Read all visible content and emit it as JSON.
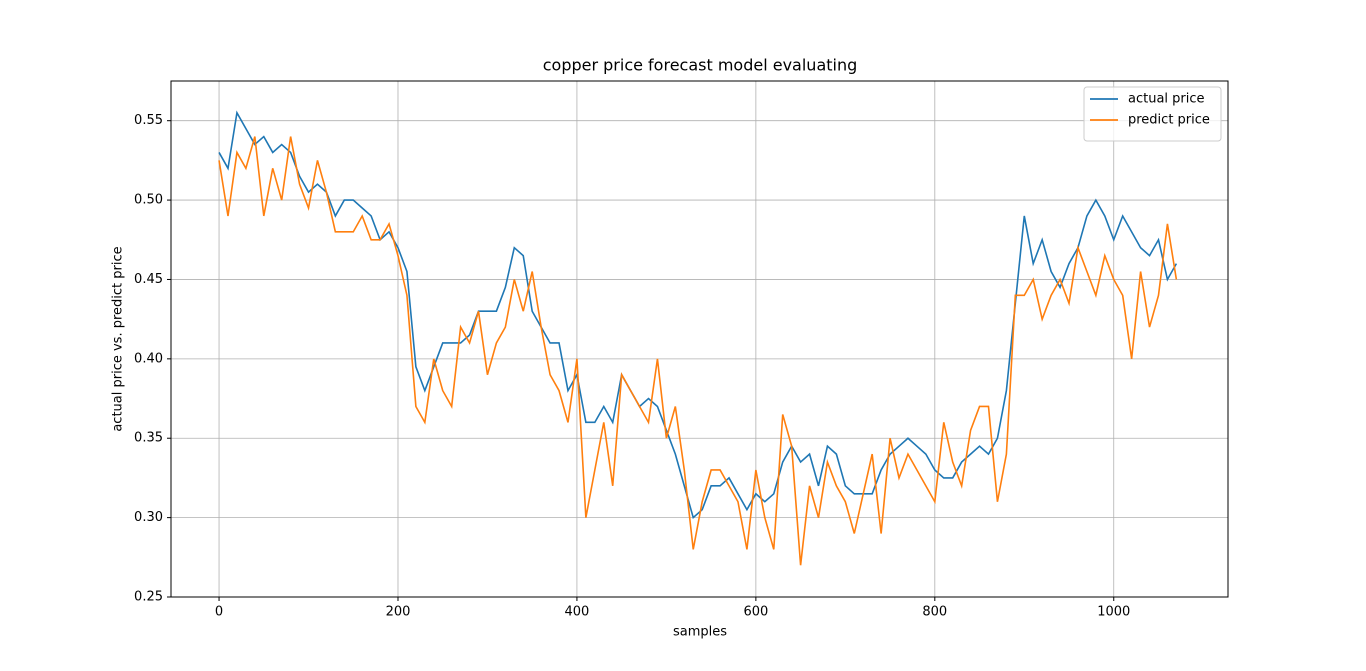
{
  "chart_data": {
    "type": "line",
    "title": "copper price forecast model evaluating",
    "x_label": "samples",
    "y_label": "actual price vs. predict price",
    "x": [
      0,
      10,
      20,
      30,
      40,
      50,
      60,
      70,
      80,
      90,
      100,
      110,
      120,
      130,
      140,
      150,
      160,
      170,
      180,
      190,
      200,
      210,
      220,
      230,
      240,
      250,
      260,
      270,
      280,
      290,
      300,
      310,
      320,
      330,
      340,
      350,
      360,
      370,
      380,
      390,
      400,
      410,
      420,
      430,
      440,
      450,
      460,
      470,
      480,
      490,
      500,
      510,
      520,
      530,
      540,
      550,
      560,
      570,
      580,
      590,
      600,
      610,
      620,
      630,
      640,
      650,
      660,
      670,
      680,
      690,
      700,
      710,
      720,
      730,
      740,
      750,
      760,
      770,
      780,
      790,
      800,
      810,
      820,
      830,
      840,
      850,
      860,
      870,
      880,
      890,
      900,
      910,
      920,
      930,
      940,
      950,
      960,
      970,
      980,
      990,
      1000,
      1010,
      1020,
      1030,
      1040,
      1050,
      1060,
      1070
    ],
    "series": [
      {
        "name": "actual price",
        "color": "#1f77b4",
        "values": [
          0.53,
          0.52,
          0.555,
          0.545,
          0.535,
          0.54,
          0.53,
          0.535,
          0.53,
          0.515,
          0.505,
          0.51,
          0.505,
          0.49,
          0.5,
          0.5,
          0.495,
          0.49,
          0.475,
          0.48,
          0.47,
          0.455,
          0.395,
          0.38,
          0.395,
          0.41,
          0.41,
          0.41,
          0.415,
          0.43,
          0.43,
          0.43,
          0.445,
          0.47,
          0.465,
          0.43,
          0.42,
          0.41,
          0.41,
          0.38,
          0.39,
          0.36,
          0.36,
          0.37,
          0.36,
          0.39,
          0.38,
          0.37,
          0.375,
          0.37,
          0.355,
          0.34,
          0.32,
          0.3,
          0.305,
          0.32,
          0.32,
          0.325,
          0.315,
          0.305,
          0.315,
          0.31,
          0.315,
          0.335,
          0.345,
          0.335,
          0.34,
          0.32,
          0.345,
          0.34,
          0.32,
          0.315,
          0.315,
          0.315,
          0.33,
          0.34,
          0.345,
          0.35,
          0.345,
          0.34,
          0.33,
          0.325,
          0.325,
          0.335,
          0.34,
          0.345,
          0.34,
          0.35,
          0.38,
          0.435,
          0.49,
          0.46,
          0.475,
          0.455,
          0.445,
          0.46,
          0.47,
          0.49,
          0.5,
          0.49,
          0.475,
          0.49,
          0.48,
          0.47,
          0.465,
          0.475,
          0.45,
          0.46
        ]
      },
      {
        "name": "predict price",
        "color": "#ff7f0e",
        "values": [
          0.525,
          0.49,
          0.53,
          0.52,
          0.54,
          0.49,
          0.52,
          0.5,
          0.54,
          0.51,
          0.495,
          0.525,
          0.505,
          0.48,
          0.48,
          0.48,
          0.49,
          0.475,
          0.475,
          0.485,
          0.465,
          0.44,
          0.37,
          0.36,
          0.4,
          0.38,
          0.37,
          0.42,
          0.41,
          0.43,
          0.39,
          0.41,
          0.42,
          0.45,
          0.43,
          0.455,
          0.42,
          0.39,
          0.38,
          0.36,
          0.4,
          0.3,
          0.33,
          0.36,
          0.32,
          0.39,
          0.38,
          0.37,
          0.36,
          0.4,
          0.35,
          0.37,
          0.33,
          0.28,
          0.31,
          0.33,
          0.33,
          0.32,
          0.31,
          0.28,
          0.33,
          0.3,
          0.28,
          0.365,
          0.345,
          0.27,
          0.32,
          0.3,
          0.335,
          0.32,
          0.31,
          0.29,
          0.315,
          0.34,
          0.29,
          0.35,
          0.325,
          0.34,
          0.33,
          0.32,
          0.31,
          0.36,
          0.335,
          0.32,
          0.355,
          0.37,
          0.37,
          0.31,
          0.34,
          0.44,
          0.44,
          0.45,
          0.425,
          0.44,
          0.45,
          0.435,
          0.47,
          0.455,
          0.44,
          0.465,
          0.45,
          0.44,
          0.4,
          0.455,
          0.42,
          0.44,
          0.485,
          0.45
        ]
      }
    ],
    "xlim": [
      -53.7,
      1127.7
    ],
    "ylim": [
      0.25,
      0.575
    ],
    "xticks": [
      0,
      200,
      400,
      600,
      800,
      1000
    ],
    "yticks": [
      0.25,
      {
        "value": 0.3,
        "label": "0.30"
      },
      0.35,
      {
        "value": 0.4,
        "label": "0.40"
      },
      0.45,
      {
        "value": 0.5,
        "label": "0.50"
      },
      0.55
    ],
    "grid": true,
    "legend": "upper right"
  }
}
